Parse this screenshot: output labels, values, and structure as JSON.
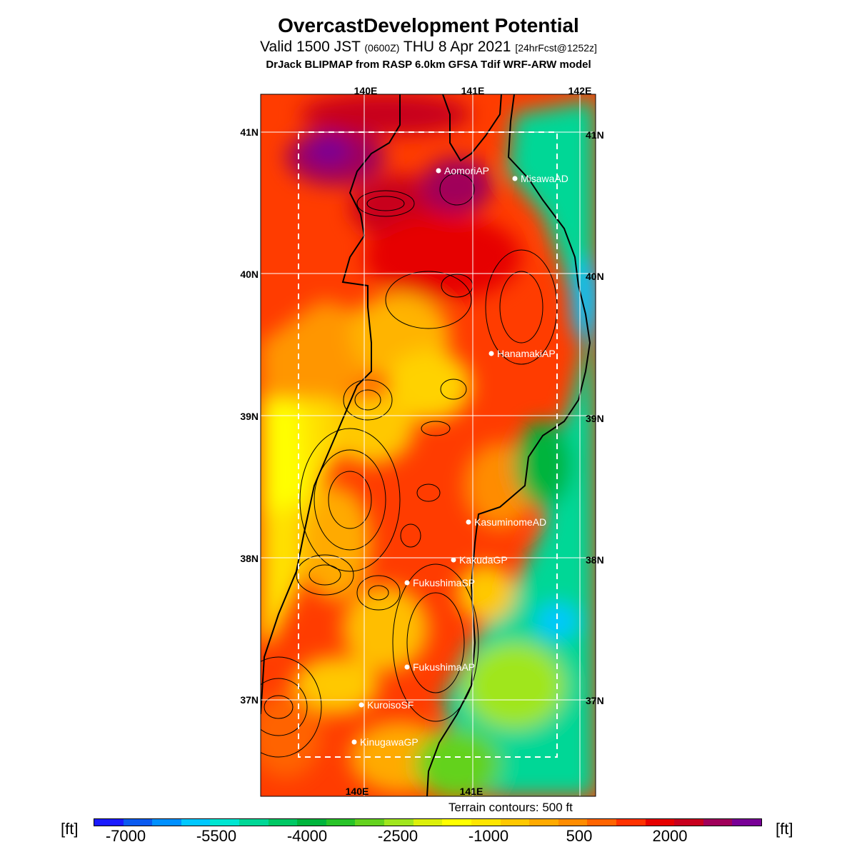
{
  "title": "OvercastDevelopment Potential",
  "subtitle": {
    "valid": "Valid 1500 JST",
    "utc": "(0600Z)",
    "date": "THU 8 Apr 2021",
    "forecast": "[24hrFcst@1252z]"
  },
  "source_line": "DrJack BLIPMAP from RASP 6.0km GFSA Tdif WRF-ARW model",
  "map": {
    "lon_labels_top": [
      "140E",
      "141E",
      "142E"
    ],
    "lon_labels_bottom": [
      "140E",
      "141E"
    ],
    "lat_labels_left": [
      "41N",
      "40N",
      "39N",
      "38N",
      "37N"
    ],
    "lat_labels_right": [
      "41N",
      "40N",
      "39N",
      "38N",
      "37N"
    ],
    "stations": [
      {
        "name": "AomoriAP"
      },
      {
        "name": "MisawaAD"
      },
      {
        "name": "HanamakiAP"
      },
      {
        "name": "KasuminomeAD"
      },
      {
        "name": "KakudaGP"
      },
      {
        "name": "FukushimaSP"
      },
      {
        "name": "FukushimaAP"
      },
      {
        "name": "KuroisoSF"
      },
      {
        "name": "KinugawaGP"
      }
    ]
  },
  "terrain_note": "Terrain contours: 500 ft",
  "units": {
    "left": "[ft]",
    "right": "[ft]"
  },
  "colorbar": {
    "labels": [
      "-7000",
      "-5500",
      "-4000",
      "-2500",
      "-1000",
      "500",
      "2000"
    ],
    "colors": [
      "#1a1aff",
      "#0a5af0",
      "#0090ff",
      "#00c8ff",
      "#00e6d2",
      "#00d796",
      "#00c864",
      "#00b43c",
      "#28c328",
      "#64d21e",
      "#a0e61e",
      "#dcf00a",
      "#ffff00",
      "#ffe600",
      "#ffc800",
      "#ffaa00",
      "#ff8c00",
      "#ff6400",
      "#ff3200",
      "#e60000",
      "#c8001e",
      "#a0005a",
      "#780096"
    ]
  }
}
